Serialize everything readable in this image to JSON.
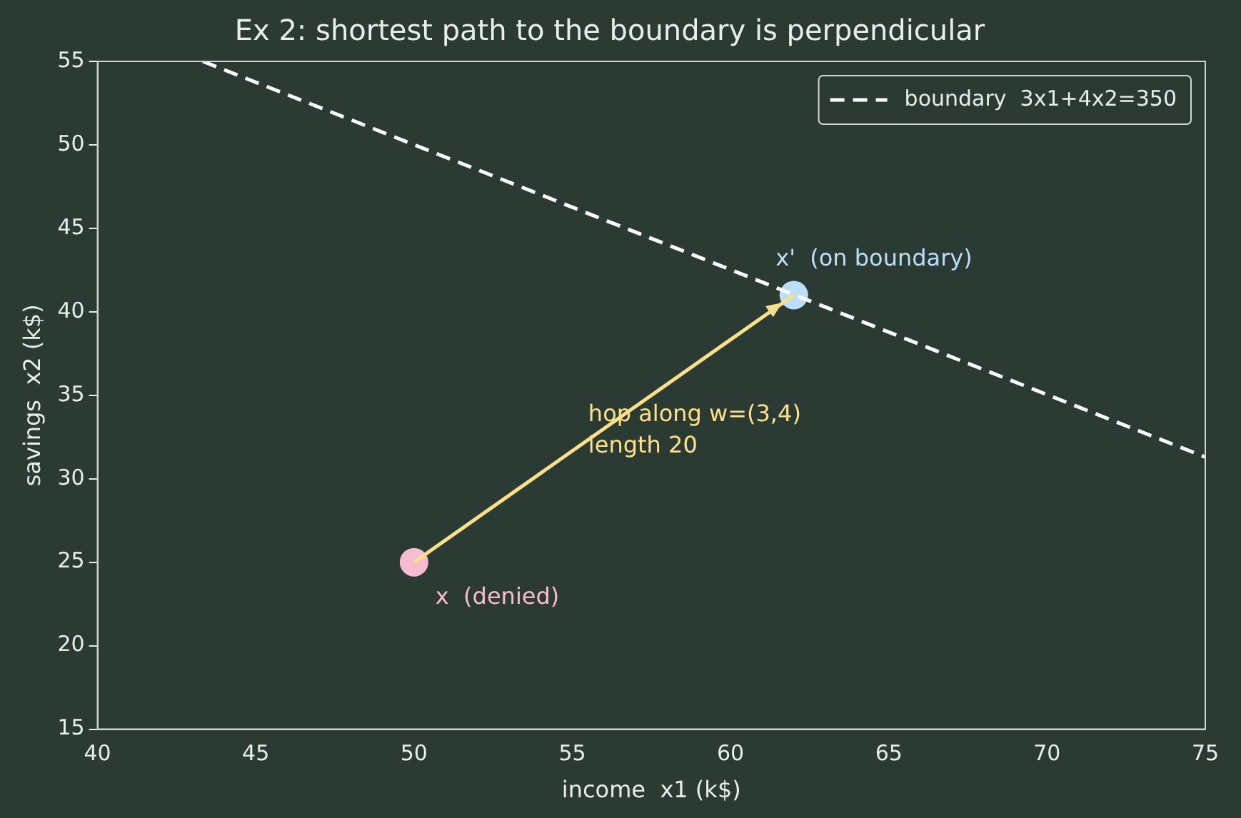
{
  "chart_data": {
    "type": "scatter",
    "title": "Ex 2: shortest path to the boundary is perpendicular",
    "xlabel": "income  x1 (k$)",
    "ylabel": "savings  x2 (k$)",
    "xlim": [
      40,
      75
    ],
    "xticks": [
      40,
      45,
      50,
      55,
      60,
      65,
      70,
      75
    ],
    "ylim": [
      15,
      55
    ],
    "yticks": [
      15,
      20,
      25,
      30,
      35,
      40,
      45,
      50,
      55
    ],
    "grid": false,
    "legend": "top right",
    "series": [
      {
        "type": "line",
        "name": "boundary  3x1+4x2=350",
        "color": "#ffffff",
        "line_style": "dashed",
        "marker": "none",
        "x": [
          43.33,
          75
        ],
        "values": [
          55,
          31.3
        ]
      },
      {
        "type": "line",
        "color": "#ffe08a",
        "line_style": "solid",
        "marker": "none",
        "x": [
          50,
          62
        ],
        "values": [
          25,
          41
        ]
      },
      {
        "type": "scatter",
        "color": "#f8bbd0",
        "marker": "circle",
        "x": [
          50
        ],
        "values": [
          25
        ]
      },
      {
        "type": "scatter",
        "color": "#bbdefb",
        "marker": "circle",
        "x": [
          62
        ],
        "values": [
          41
        ]
      }
    ],
    "annotations": [
      {
        "text": "x  (denied)",
        "x": 50,
        "y": 25
      },
      {
        "text": "x'  (on boundary)",
        "x": 62,
        "y": 41
      },
      "hop along w=(3,4)\nlength 20"
    ]
  }
}
